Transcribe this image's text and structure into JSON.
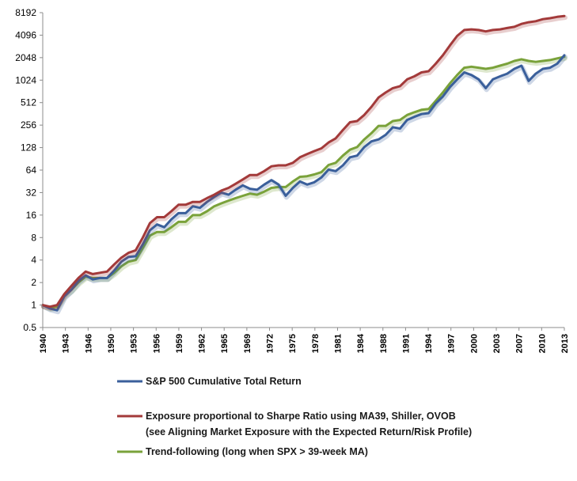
{
  "chart_data": {
    "type": "line",
    "title": "",
    "xlabel": "",
    "ylabel": "",
    "y_scale": "log2",
    "ylim": [
      0.5,
      8192
    ],
    "xlim": [
      1940,
      2013
    ],
    "grid": false,
    "legend_placement": "bottom",
    "y_ticks": [
      "8192",
      "4096",
      "2048",
      "1024",
      "512",
      "256",
      "128",
      "64",
      "32",
      "16",
      "8",
      "4",
      "2",
      "1",
      "0.5"
    ],
    "x_ticks": [
      "1940",
      "1943",
      "1946",
      "1950",
      "1953",
      "1956",
      "1959",
      "1962",
      "1965",
      "1969",
      "1972",
      "1975",
      "1978",
      "1981",
      "1984",
      "1988",
      "1991",
      "1994",
      "1997",
      "2000",
      "2003",
      "2007",
      "2010",
      "2013"
    ],
    "series": [
      {
        "key": "sp500",
        "name": "S&P 500 Cumulative Total Return",
        "color": "#3a5f9b",
        "x": [
          1940,
          1941,
          1942,
          1943,
          1944,
          1945,
          1946,
          1947,
          1948,
          1949,
          1950,
          1951,
          1952,
          1953,
          1954,
          1955,
          1956,
          1957,
          1958,
          1959,
          1960,
          1961,
          1962,
          1963,
          1964,
          1965,
          1966,
          1967,
          1968,
          1969,
          1970,
          1971,
          1972,
          1973,
          1974,
          1975,
          1976,
          1977,
          1978,
          1979,
          1980,
          1981,
          1982,
          1983,
          1984,
          1985,
          1986,
          1987,
          1988,
          1989,
          1990,
          1991,
          1992,
          1993,
          1994,
          1995,
          1996,
          1997,
          1998,
          1999,
          2000,
          2001,
          2002,
          2003,
          2004,
          2005,
          2006,
          2007,
          2008,
          2009,
          2010,
          2011,
          2012,
          2013
        ],
        "values": [
          1.0,
          0.9,
          0.85,
          1.3,
          1.6,
          2.1,
          2.5,
          2.2,
          2.3,
          2.3,
          2.9,
          3.8,
          4.4,
          4.5,
          6.5,
          10,
          12,
          11,
          14,
          17,
          17,
          21,
          20,
          24,
          28,
          32,
          30,
          35,
          40,
          36,
          35,
          41,
          47,
          41,
          29,
          37,
          45,
          41,
          44,
          51,
          65,
          62,
          74,
          95,
          100,
          130,
          155,
          165,
          190,
          240,
          230,
          300,
          330,
          360,
          370,
          500,
          620,
          830,
          1050,
          1300,
          1200,
          1050,
          800,
          1050,
          1150,
          1250,
          1450,
          1600,
          1000,
          1250,
          1450,
          1500,
          1700,
          2200
        ]
      },
      {
        "key": "sharpe",
        "name": "Exposure proportional to Sharpe Ratio using MA39, Shiller, OVOB",
        "name_line2": "(see Aligning Market Exposure with the Expected Return/Risk Profile)",
        "color": "#a33a3a",
        "x": [
          1940,
          1941,
          1942,
          1943,
          1944,
          1945,
          1946,
          1947,
          1948,
          1949,
          1950,
          1951,
          1952,
          1953,
          1954,
          1955,
          1956,
          1957,
          1958,
          1959,
          1960,
          1961,
          1962,
          1963,
          1964,
          1965,
          1966,
          1967,
          1968,
          1969,
          1970,
          1971,
          1972,
          1973,
          1974,
          1975,
          1976,
          1977,
          1978,
          1979,
          1980,
          1981,
          1982,
          1983,
          1984,
          1985,
          1986,
          1987,
          1988,
          1989,
          1990,
          1991,
          1992,
          1993,
          1994,
          1995,
          1996,
          1997,
          1998,
          1999,
          2000,
          2001,
          2002,
          2003,
          2004,
          2005,
          2006,
          2007,
          2008,
          2009,
          2010,
          2011,
          2012,
          2013
        ],
        "values": [
          1.0,
          0.95,
          1.0,
          1.4,
          1.8,
          2.3,
          2.8,
          2.6,
          2.7,
          2.8,
          3.5,
          4.3,
          5.0,
          5.4,
          8.0,
          12.5,
          15,
          15,
          18,
          22,
          22,
          24,
          24,
          27,
          30,
          34,
          37,
          42,
          48,
          55,
          55,
          62,
          72,
          74,
          74,
          80,
          95,
          105,
          115,
          125,
          150,
          170,
          220,
          280,
          290,
          350,
          450,
          600,
          700,
          800,
          850,
          1050,
          1150,
          1300,
          1350,
          1700,
          2200,
          3000,
          4000,
          4800,
          4900,
          4800,
          4600,
          4800,
          4900,
          5100,
          5300,
          5800,
          6100,
          6300,
          6700,
          6900,
          7200,
          7400
        ]
      },
      {
        "key": "trend",
        "name": "Trend-following (long when SPX > 39-week MA)",
        "color": "#7aa23a",
        "x": [
          1940,
          1941,
          1942,
          1943,
          1944,
          1945,
          1946,
          1947,
          1948,
          1949,
          1950,
          1951,
          1952,
          1953,
          1954,
          1955,
          1956,
          1957,
          1958,
          1959,
          1960,
          1961,
          1962,
          1963,
          1964,
          1965,
          1966,
          1967,
          1968,
          1969,
          1970,
          1971,
          1972,
          1973,
          1974,
          1975,
          1976,
          1977,
          1978,
          1979,
          1980,
          1981,
          1982,
          1983,
          1984,
          1985,
          1986,
          1987,
          1988,
          1989,
          1990,
          1991,
          1992,
          1993,
          1994,
          1995,
          1996,
          1997,
          1998,
          1999,
          2000,
          2001,
          2002,
          2003,
          2004,
          2005,
          2006,
          2007,
          2008,
          2009,
          2010,
          2011,
          2012,
          2013
        ],
        "values": [
          1.0,
          0.92,
          0.95,
          1.35,
          1.6,
          2.0,
          2.4,
          2.3,
          2.3,
          2.3,
          2.7,
          3.3,
          3.8,
          4.0,
          5.8,
          8.5,
          9.5,
          9.5,
          11,
          13,
          13,
          16,
          16,
          18,
          21,
          23,
          25,
          27,
          29,
          31,
          30,
          33,
          37,
          38,
          38,
          45,
          52,
          53,
          56,
          60,
          75,
          80,
          100,
          120,
          130,
          165,
          200,
          250,
          250,
          290,
          300,
          350,
          380,
          410,
          420,
          540,
          700,
          930,
          1200,
          1500,
          1550,
          1500,
          1450,
          1500,
          1600,
          1700,
          1850,
          1950,
          1850,
          1800,
          1850,
          1900,
          2000,
          2100
        ]
      }
    ]
  }
}
